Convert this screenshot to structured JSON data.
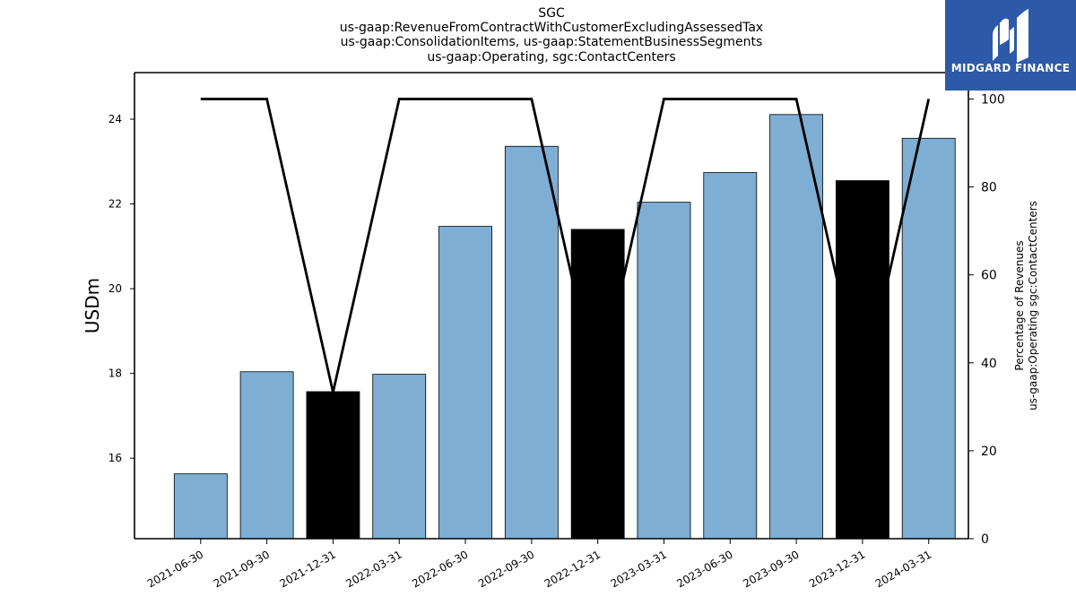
{
  "header": {
    "title_lines": [
      "SGC",
      "us-gaap:RevenueFromContractWithCustomerExcludingAssessedTax",
      "us-gaap:ConsolidationItems, us-gaap:StatementBusinessSegments",
      "us-gaap:Operating, sgc:ContactCenters"
    ]
  },
  "logo": {
    "text": "MIDGARD FINANCE",
    "background": "#2d5aa8"
  },
  "chart_data": {
    "type": "bar",
    "categories": [
      "2021-06-30",
      "2021-09-30",
      "2021-12-31",
      "2022-03-31",
      "2022-06-30",
      "2022-09-30",
      "2022-12-31",
      "2023-03-31",
      "2023-06-30",
      "2023-09-30",
      "2023-12-31",
      "2024-03-31"
    ],
    "values": [
      15.63,
      18.04,
      17.57,
      17.98,
      21.47,
      23.36,
      21.4,
      22.04,
      22.74,
      24.11,
      22.55,
      23.55
    ],
    "bar_colors": [
      "#7eaed3",
      "#7eaed3",
      "#000000",
      "#7eaed3",
      "#7eaed3",
      "#7eaed3",
      "#000000",
      "#7eaed3",
      "#7eaed3",
      "#7eaed3",
      "#000000",
      "#7eaed3"
    ],
    "ylabel": "USDm",
    "ylim": [
      14.1,
      25.1
    ],
    "yticks": [
      16,
      18,
      20,
      22,
      24
    ],
    "line_series": {
      "values": [
        100,
        100,
        33.3,
        100,
        100,
        100,
        33.3,
        100,
        100,
        100,
        33.3,
        100
      ],
      "color": "#000000"
    },
    "y2label_lines": [
      "Percentage of Revenues",
      "us-gaap:Operating sgc:ContactCenters"
    ],
    "y2lim": [
      0,
      106
    ],
    "y2ticks": [
      0,
      20,
      40,
      60,
      80,
      100
    ],
    "grid": false
  }
}
